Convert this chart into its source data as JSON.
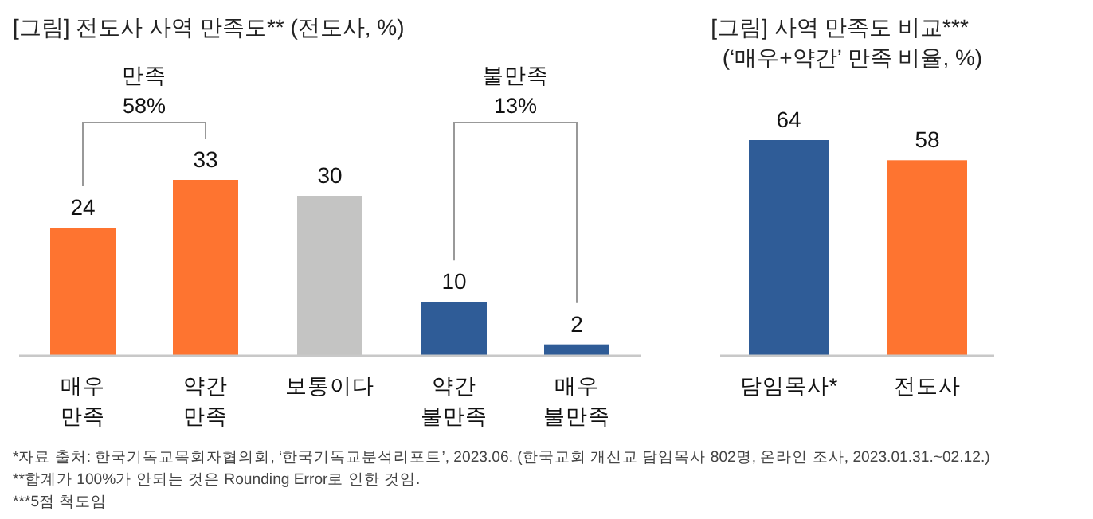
{
  "chart_data": [
    {
      "type": "bar",
      "title": "[그림] 전도사 사역 만족도** (전도사, %)",
      "categories": [
        "매우 만족",
        "약간 만족",
        "보통이다",
        "약간 불만족",
        "매우 불만족"
      ],
      "values": [
        24,
        33,
        30,
        10,
        2
      ],
      "colors": [
        "#fe7430",
        "#fe7430",
        "#c4c4c3",
        "#2f5c97",
        "#2f5c97"
      ],
      "data_labels": true,
      "annotations": [
        "만족",
        "58%",
        "불만족",
        "13%",
        "*자료 출처: 한국기독교목회자협의회, ‘한국기독교분석리포트’, 2023.06. (한국교회 개신교 담임목사 802명, 온라인 조사, 2023.01.31.~02.12.)",
        "**합계가 100%가 안되는 것은 Rounding Error로 인한 것임.",
        "***5점 척도임"
      ]
    },
    {
      "type": "bar",
      "title": "[그림] 사역 만족도 비교***",
      "subtitle": "(‘매우+약간’ 만족 비율, %)",
      "categories": [
        "담임목사*",
        "전도사"
      ],
      "values": [
        64,
        58
      ],
      "colors": [
        "#2f5c97",
        "#fe7430"
      ],
      "data_labels": true
    }
  ]
}
